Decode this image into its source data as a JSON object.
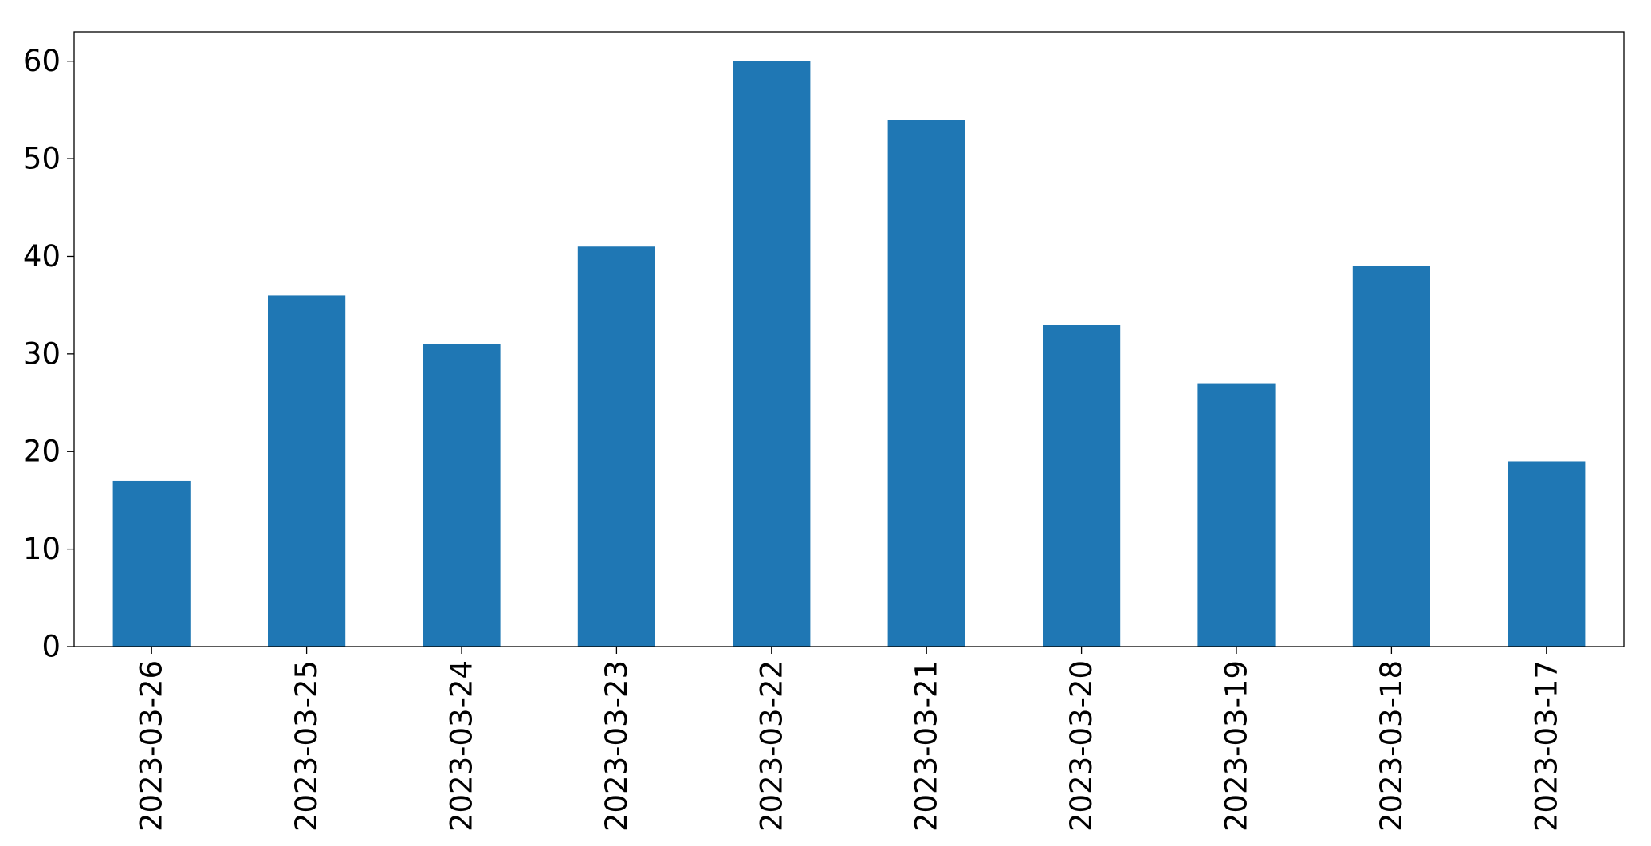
{
  "chart_data": {
    "type": "bar",
    "title": "",
    "xlabel": "",
    "ylabel": "",
    "categories": [
      "2023-03-26",
      "2023-03-25",
      "2023-03-24",
      "2023-03-23",
      "2023-03-22",
      "2023-03-21",
      "2023-03-20",
      "2023-03-19",
      "2023-03-18",
      "2023-03-17"
    ],
    "values": [
      17,
      36,
      31,
      41,
      60,
      54,
      33,
      27,
      39,
      19
    ],
    "ylim": [
      0,
      63
    ],
    "yticks": [
      0,
      10,
      20,
      30,
      40,
      50,
      60
    ],
    "grid": false,
    "legend": "none",
    "bar_color": "#1f77b4"
  }
}
